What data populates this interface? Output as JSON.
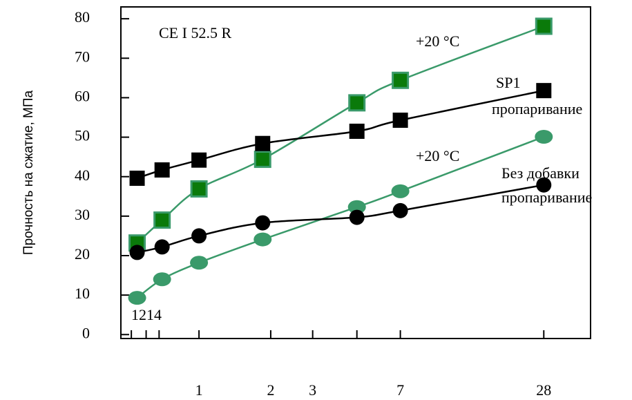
{
  "chart_data": {
    "type": "line",
    "y_label": "Прочность на сжатие, МПа",
    "annotations": [
      "CE I 52.5 R",
      "+20 °C",
      "SP1",
      "пропаривание",
      "+20 °C",
      "Без добавки",
      "пропаривание",
      "1214"
    ],
    "x": [
      0.55,
      0.7,
      1,
      1.85,
      4.6,
      7,
      28
    ],
    "x_log": true,
    "series": [
      {
        "color": "#3a9a6a",
        "marker": "square",
        "values": [
          23.2,
          29.0,
          36.9,
          44.4,
          58.7,
          64.4,
          78.1
        ]
      },
      {
        "color": "#000000",
        "marker": "square",
        "values": [
          39.6,
          41.7,
          44.2,
          48.4,
          51.5,
          54.3,
          61.8
        ]
      },
      {
        "color": "#3a9a6a",
        "marker": "ellipse",
        "values": [
          9.3,
          14.0,
          18.2,
          24.1,
          32.3,
          36.3,
          50.1
        ]
      },
      {
        "color": "#000000",
        "marker": "circle",
        "values": [
          20.8,
          22.2,
          25.0,
          28.3,
          29.7,
          31.4,
          37.9
        ]
      }
    ],
    "xlim": [
      0.47,
      44
    ],
    "xticks": [
      1,
      2,
      3,
      7,
      28
    ],
    "minor_xticks": [
      0.52,
      0.6,
      0.68,
      4.6
    ],
    "ylim": [
      -1,
      83
    ],
    "yticks": [
      0,
      10,
      20,
      30,
      40,
      50,
      60,
      70,
      80
    ]
  }
}
